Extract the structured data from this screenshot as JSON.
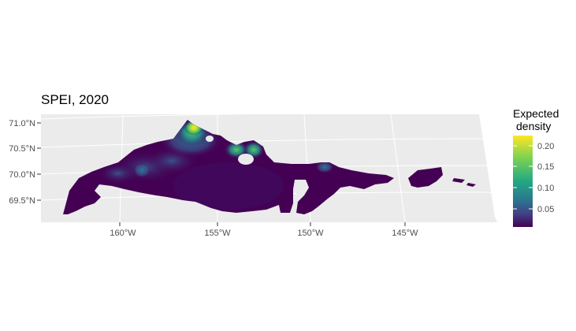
{
  "title": "SPEI, 2020",
  "legend": {
    "title_line1": "Expected",
    "title_line2": "density",
    "ticks": [
      "0.20",
      "0.15",
      "0.10",
      "0.05"
    ],
    "colors": [
      "#fde725",
      "#5ec962",
      "#21918c",
      "#3b528b",
      "#440154"
    ]
  },
  "axes": {
    "lat_labels": [
      "71.0°N",
      "70.5°N",
      "70.0°N",
      "69.5°N"
    ],
    "lon_labels": [
      "160°W",
      "155°W",
      "150°W",
      "145°W"
    ]
  },
  "colors": {
    "panel_bg": "#ebebeb",
    "grid": "#ffffff",
    "land_base": "#440154"
  }
}
